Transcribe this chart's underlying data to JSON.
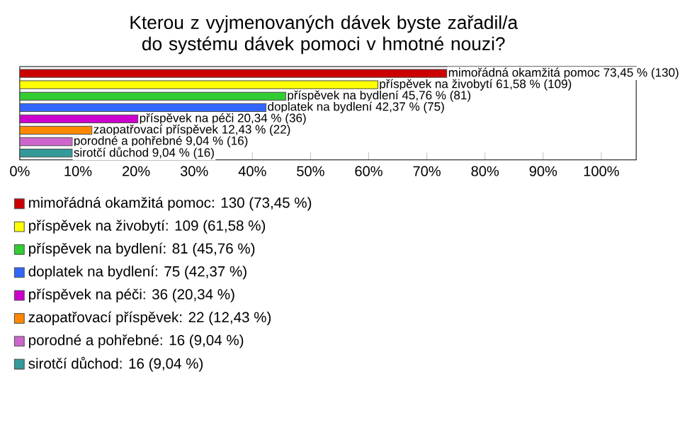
{
  "chart_data": {
    "type": "bar",
    "orientation": "horizontal",
    "title": "Kterou z vyjmenovaných dávek byste zařadil/a do systému dávek pomoci v hmotné nouzi?",
    "categories": [
      null,
      null,
      null,
      null,
      null,
      null,
      null,
      null
    ],
    "values": [
      73.45,
      61.58,
      45.76,
      42.37,
      20.34,
      12.43,
      9.04,
      9.04
    ],
    "colors": [
      "#cc0000",
      "#ffff00",
      "#33cc33",
      "#3366ff",
      "#cc00cc",
      "#ff8800",
      "#cc66cc",
      "#339999"
    ],
    "value_labels": [
      "mimořádná okamžitá pomoc 73,45 % (130)",
      "příspěvek na živobytí 61,58 % (109)",
      "příspěvek na bydlení 45,76 % (81)",
      "doplatek na bydlení 42,37 % (75)",
      "příspěvek na péči 20,34 % (36)",
      "zaopatřovací příspěvek 12,43 % (22)",
      "porodné a pohřebné 9,04 % (16)",
      "sirotčí důchod 9,04 % (16)"
    ],
    "annotations": [
      "mimořádná okamžitá pomoc: 130 (73,45 %)",
      "příspěvek na živobytí: 109 (61,58 %)",
      "příspěvek na bydlení: 81 (45,76 %)",
      "doplatek na bydlení: 75 (42,37 %)",
      "příspěvek na péči: 36 (20,34 %)",
      "zaopatřovací příspěvek: 22 (12,43 %)",
      "porodné a pohřebné: 16 (9,04 %)",
      "sirotčí důchod: 16 (9,04 %)"
    ],
    "xlim": [
      0,
      106
    ],
    "xticks": [
      {
        "value": 0,
        "label": "0%"
      },
      {
        "value": 10,
        "label": "10%"
      },
      {
        "value": 20,
        "label": "20%"
      },
      {
        "value": 30,
        "label": "30%"
      },
      {
        "value": 40,
        "label": "40%"
      },
      {
        "value": 50,
        "label": "50%"
      },
      {
        "value": 60,
        "label": "60%"
      },
      {
        "value": 70,
        "label": "70%"
      },
      {
        "value": 80,
        "label": "80%"
      },
      {
        "value": 90,
        "label": "90%"
      },
      {
        "value": 100,
        "label": "100%"
      }
    ],
    "tick_labels": "x"
  }
}
